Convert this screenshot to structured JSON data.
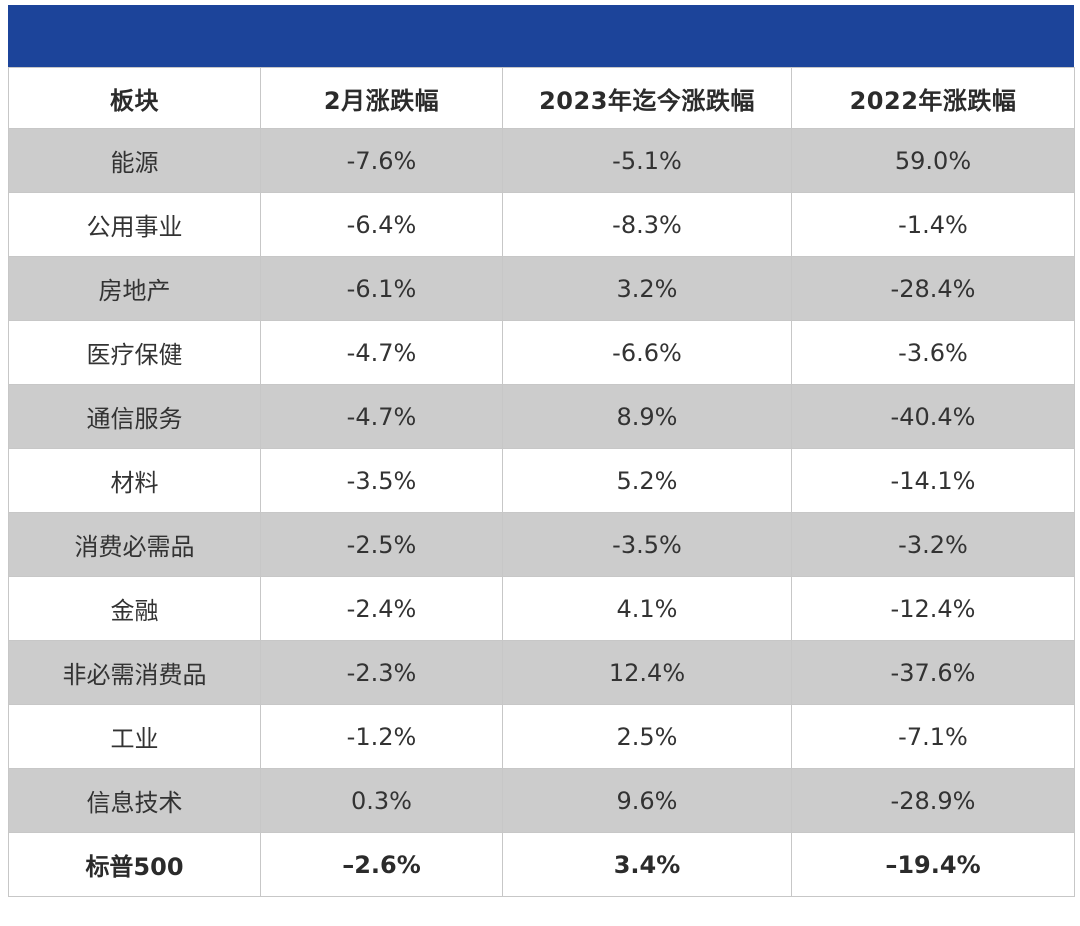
{
  "colors": {
    "header_bar": "#1c449a",
    "shaded_row": "#cccccc",
    "plain_row": "#ffffff",
    "grid_line": "#c7c7c7"
  },
  "chart_data": {
    "type": "table",
    "columns": [
      "板块",
      "2月涨跌幅",
      "2023年迄今涨跌幅",
      "2022年涨跌幅"
    ],
    "rows": [
      [
        "能源",
        "-7.6%",
        "-5.1%",
        "59.0%"
      ],
      [
        "公用事业",
        "-6.4%",
        "-8.3%",
        "-1.4%"
      ],
      [
        "房地产",
        "-6.1%",
        "3.2%",
        "-28.4%"
      ],
      [
        "医疗保健",
        "-4.7%",
        "-6.6%",
        "-3.6%"
      ],
      [
        "通信服务",
        "-4.7%",
        "8.9%",
        "-40.4%"
      ],
      [
        "材料",
        "-3.5%",
        "5.2%",
        "-14.1%"
      ],
      [
        "消费必需品",
        "-2.5%",
        "-3.5%",
        "-3.2%"
      ],
      [
        "金融",
        "-2.4%",
        "4.1%",
        "-12.4%"
      ],
      [
        "非必需消费品",
        "-2.3%",
        "12.4%",
        "-37.6%"
      ],
      [
        "工业",
        "-1.2%",
        "2.5%",
        "-7.1%"
      ],
      [
        "信息技术",
        "0.3%",
        "9.6%",
        "-28.9%"
      ],
      [
        "标普500",
        "–2.6%",
        "3.4%",
        "–19.4%"
      ]
    ]
  }
}
